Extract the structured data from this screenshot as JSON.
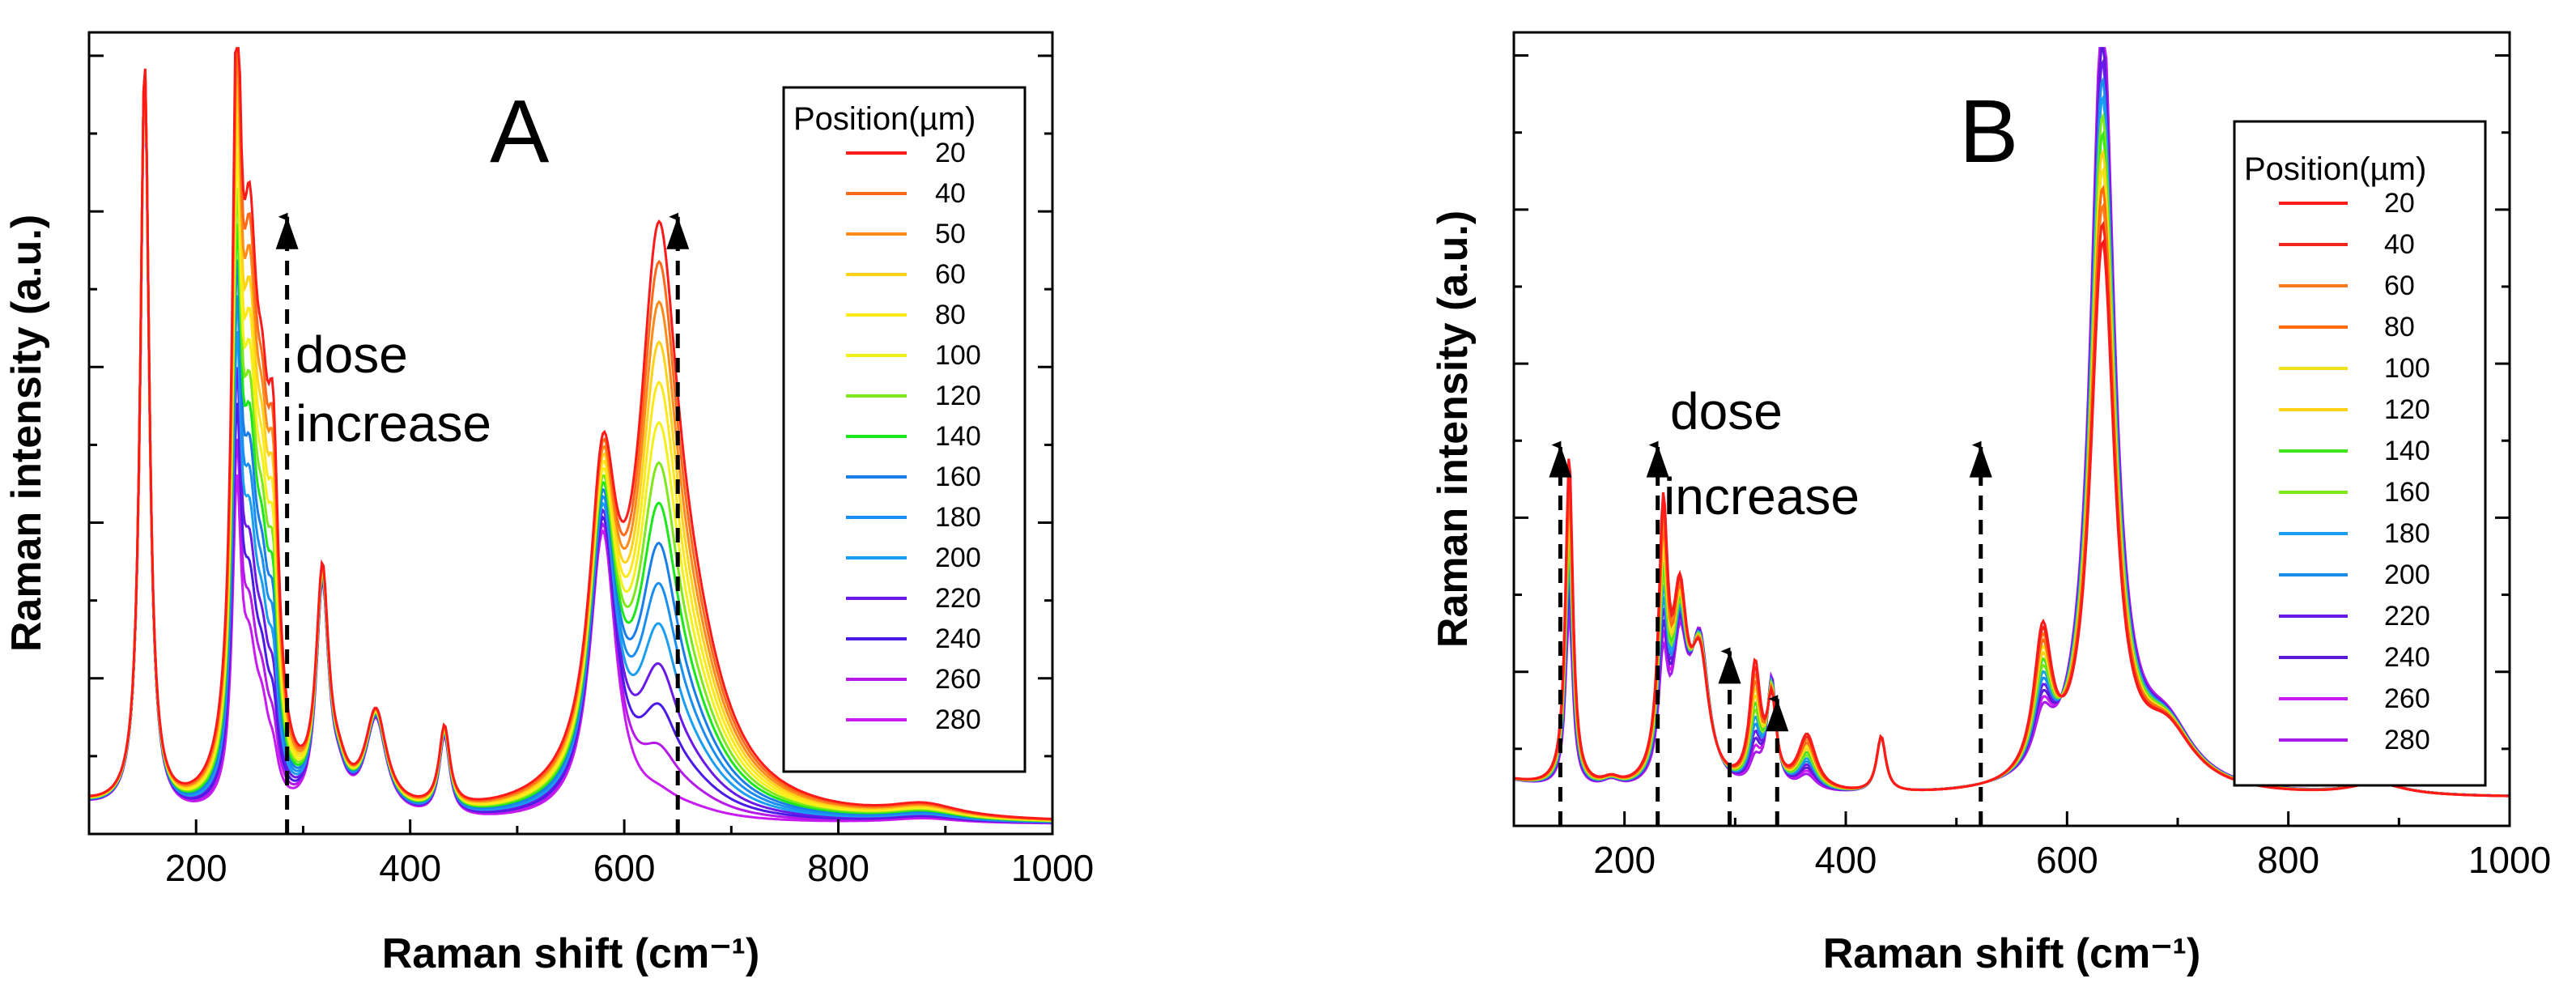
{
  "chart_data": [
    {
      "panel": "A",
      "type": "line",
      "xlabel": "Raman shift (cm⁻¹)",
      "ylabel": "Raman intensity (a.u.)",
      "xlim": [
        100,
        1000
      ],
      "ylim": [
        0,
        1.0
      ],
      "xticks": [
        200,
        400,
        600,
        800,
        1000
      ],
      "legend": {
        "title": "Position(µm)",
        "position": "top-right",
        "entries": [
          {
            "label": "20",
            "color": "#ff1a1a"
          },
          {
            "label": "40",
            "color": "#ff6a1a"
          },
          {
            "label": "50",
            "color": "#ff8c1a"
          },
          {
            "label": "60",
            "color": "#ffd21a"
          },
          {
            "label": "80",
            "color": "#ffe81a"
          },
          {
            "label": "100",
            "color": "#f2f21a"
          },
          {
            "label": "120",
            "color": "#7ee81a"
          },
          {
            "label": "140",
            "color": "#1ae81a"
          },
          {
            "label": "160",
            "color": "#1a7ee8"
          },
          {
            "label": "180",
            "color": "#1a8ef2"
          },
          {
            "label": "200",
            "color": "#1a9ef2"
          },
          {
            "label": "220",
            "color": "#6a1ae8"
          },
          {
            "label": "240",
            "color": "#4a1ae8"
          },
          {
            "label": "260",
            "color": "#b61ae8"
          },
          {
            "label": "280",
            "color": "#c81af2"
          }
        ]
      },
      "annotations": [
        {
          "text": "dose",
          "x": 290,
          "y": 0.58
        },
        {
          "text": "increase",
          "x": 290,
          "y": 0.5
        },
        {
          "type": "arrow",
          "x": 285,
          "y0": 0.0,
          "y1": 0.77
        },
        {
          "type": "arrow",
          "x": 650,
          "y0": 0.0,
          "y1": 0.77
        }
      ],
      "peaks": [
        {
          "center": 152,
          "width": 5,
          "amp": 0.93,
          "scaling": 0
        },
        {
          "center": 238,
          "width": 5,
          "amp": 0.36,
          "scaling": 0.45
        },
        {
          "center": 250,
          "width": 9,
          "amp": 0.16,
          "scaling": 0.4
        },
        {
          "center": 262,
          "width": 8,
          "amp": 0.08,
          "scaling": 0.2
        },
        {
          "center": 272,
          "width": 6,
          "amp": 0.04,
          "scaling": 0.28
        },
        {
          "center": 318,
          "width": 7,
          "amp": 0.28,
          "scaling": 0
        },
        {
          "center": 333,
          "width": 10,
          "amp": 0.03,
          "scaling": 0
        },
        {
          "center": 368,
          "width": 12,
          "amp": 0.12,
          "scaling": 0
        },
        {
          "center": 432,
          "width": 6,
          "amp": 0.1,
          "scaling": 0
        },
        {
          "center": 580,
          "width": 15,
          "amp": 0.36,
          "scaling": 0
        },
        {
          "center": 632,
          "width": 22,
          "amp": 0.015,
          "scaling": 0.6
        },
        {
          "center": 660,
          "width": 40,
          "amp": 0.01,
          "scaling": 0.15
        },
        {
          "center": 880,
          "width": 40,
          "amp": 0.006,
          "scaling": 0.01
        }
      ]
    },
    {
      "panel": "B",
      "type": "line",
      "xlabel": "Raman shift (cm⁻¹)",
      "ylabel": "Raman intensity (a.u.)",
      "xlim": [
        100,
        1000
      ],
      "ylim": [
        0,
        1.0
      ],
      "xticks": [
        200,
        400,
        600,
        800,
        1000
      ],
      "legend": {
        "title": "Position(µm)",
        "position": "top-right",
        "entries": [
          {
            "label": "20",
            "color": "#ff1a1a"
          },
          {
            "label": "40",
            "color": "#f2261a"
          },
          {
            "label": "60",
            "color": "#ff7a1a"
          },
          {
            "label": "80",
            "color": "#ff6a0a"
          },
          {
            "label": "100",
            "color": "#f2e21a"
          },
          {
            "label": "120",
            "color": "#ffd21a"
          },
          {
            "label": "140",
            "color": "#3ee81a"
          },
          {
            "label": "160",
            "color": "#7ee81a"
          },
          {
            "label": "180",
            "color": "#1a9ef2"
          },
          {
            "label": "200",
            "color": "#1a8ee8"
          },
          {
            "label": "220",
            "color": "#6a1ae8"
          },
          {
            "label": "240",
            "color": "#5a1ad8"
          },
          {
            "label": "260",
            "color": "#c81af2"
          },
          {
            "label": "280",
            "color": "#a81ae8"
          }
        ]
      },
      "annotations": [
        {
          "text": "dose",
          "x": 240,
          "y": 0.5
        },
        {
          "text": "increase",
          "x": 240,
          "y": 0.41
        },
        {
          "type": "arrow",
          "x": 142,
          "y0": 0.0,
          "y1": 0.48
        },
        {
          "type": "arrow",
          "x": 230,
          "y0": 0.0,
          "y1": 0.48
        },
        {
          "type": "arrow",
          "x": 295,
          "y0": 0.0,
          "y1": 0.22
        },
        {
          "type": "arrow",
          "x": 338,
          "y0": 0.0,
          "y1": 0.16
        },
        {
          "type": "arrow",
          "x": 522,
          "y0": 0.0,
          "y1": 0.48
        }
      ],
      "peaks": [
        {
          "center": 150,
          "width": 4,
          "amp": 0.22,
          "scaling": 0.2
        },
        {
          "center": 188,
          "width": 10,
          "amp": 0.01,
          "scaling": 0
        },
        {
          "center": 235,
          "width": 5,
          "amp": 0.14,
          "scaling": 0.18
        },
        {
          "center": 250,
          "width": 8,
          "amp": 0.16,
          "scaling": 0.05
        },
        {
          "center": 268,
          "width": 10,
          "amp": 0.18,
          "scaling": -0.03
        },
        {
          "center": 318,
          "width": 6,
          "amp": 0.03,
          "scaling": 0.12
        },
        {
          "center": 333,
          "width": 5,
          "amp": 0.14,
          "scaling": -0.04
        },
        {
          "center": 365,
          "width": 10,
          "amp": 0.02,
          "scaling": 0.05
        },
        {
          "center": 432,
          "width": 5,
          "amp": 0.07,
          "scaling": 0
        },
        {
          "center": 578,
          "width": 10,
          "amp": 0.06,
          "scaling": 0.12
        },
        {
          "center": 632,
          "width": 13,
          "amp": 0.98,
          "scaling": -0.3
        },
        {
          "center": 690,
          "width": 30,
          "amp": 0.07,
          "scaling": 0
        },
        {
          "center": 880,
          "width": 30,
          "amp": 0.015,
          "scaling": 0
        }
      ]
    }
  ],
  "panels": {
    "A": {
      "letter": "A",
      "annot_line1": "dose",
      "annot_line2": "increase"
    },
    "B": {
      "letter": "B",
      "annot_line1": "dose",
      "annot_line2": "increase"
    }
  }
}
